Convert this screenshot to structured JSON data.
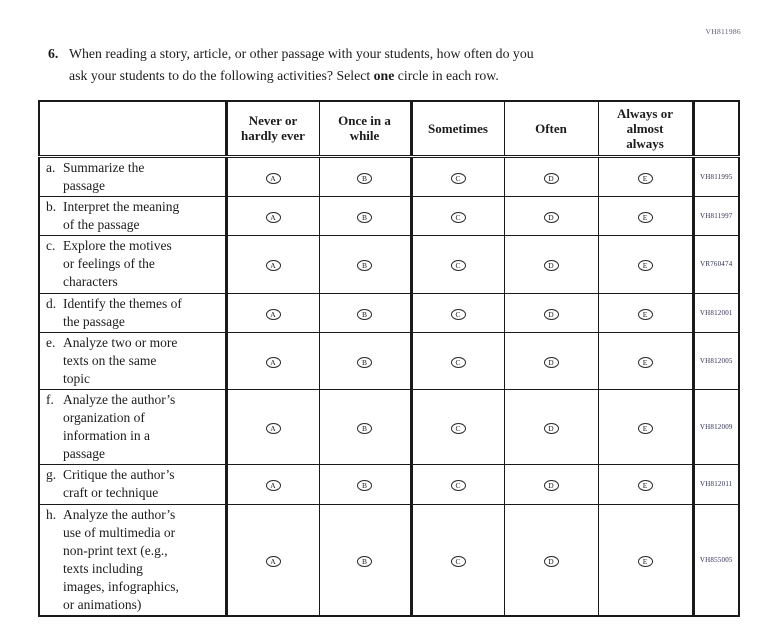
{
  "page_code": "VH811986",
  "question": {
    "number": "6.",
    "line1": "When reading a story, article, or other passage with your students, how often do you",
    "line2_before": "ask your students to do the following activities? Select ",
    "line2_bold": "one",
    "line2_after": " circle in each row."
  },
  "table": {
    "columns": [
      {
        "label": "Never or hardly ever",
        "lines": [
          "Never or",
          "hardly ever"
        ]
      },
      {
        "label": "Once in a while",
        "lines": [
          "Once in a",
          "while"
        ]
      },
      {
        "label": "Sometimes",
        "lines": [
          "Sometimes"
        ]
      },
      {
        "label": "Often",
        "lines": [
          "Often"
        ]
      },
      {
        "label": "Always or almost always",
        "lines": [
          "Always or",
          "almost",
          "always"
        ]
      }
    ],
    "options": [
      "A",
      "B",
      "C",
      "D",
      "E"
    ],
    "rows": [
      {
        "letter": "a.",
        "label": "Summarize the passage",
        "label_lines": [
          "Summarize the",
          "passage"
        ],
        "code": "VH811995"
      },
      {
        "letter": "b.",
        "label": "Interpret the meaning of the passage",
        "label_lines": [
          "Interpret the meaning",
          "of the passage"
        ],
        "code": "VH811997"
      },
      {
        "letter": "c.",
        "label": "Explore the motives or feelings of the characters",
        "label_lines": [
          "Explore the motives",
          "or feelings of the",
          "characters"
        ],
        "code": "VR760474"
      },
      {
        "letter": "d.",
        "label": "Identify the themes of the passage",
        "label_lines": [
          "Identify the themes of",
          "the passage"
        ],
        "code": "VH812001"
      },
      {
        "letter": "e.",
        "label": "Analyze two or more texts on the same topic",
        "label_lines": [
          "Analyze two or more",
          "texts on the same",
          "topic"
        ],
        "code": "VH812005"
      },
      {
        "letter": "f.",
        "label": "Analyze the author’s organization of information in a passage",
        "label_lines": [
          "Analyze the author’s",
          "organization of",
          "information in a",
          "passage"
        ],
        "code": "VH812009"
      },
      {
        "letter": "g.",
        "label": "Critique the author’s craft or technique",
        "label_lines": [
          "Critique the author’s",
          "craft or technique"
        ],
        "code": "VH812011"
      },
      {
        "letter": "h.",
        "label": "Analyze the author’s use of multimedia or non-print text (e.g., texts including images, infographics, or animations)",
        "label_lines": [
          "Analyze the author’s",
          "use of multimedia or",
          "non-print text (e.g.,",
          "texts including",
          "images, infographics,",
          "or animations)"
        ],
        "code": "VH855005"
      }
    ]
  }
}
